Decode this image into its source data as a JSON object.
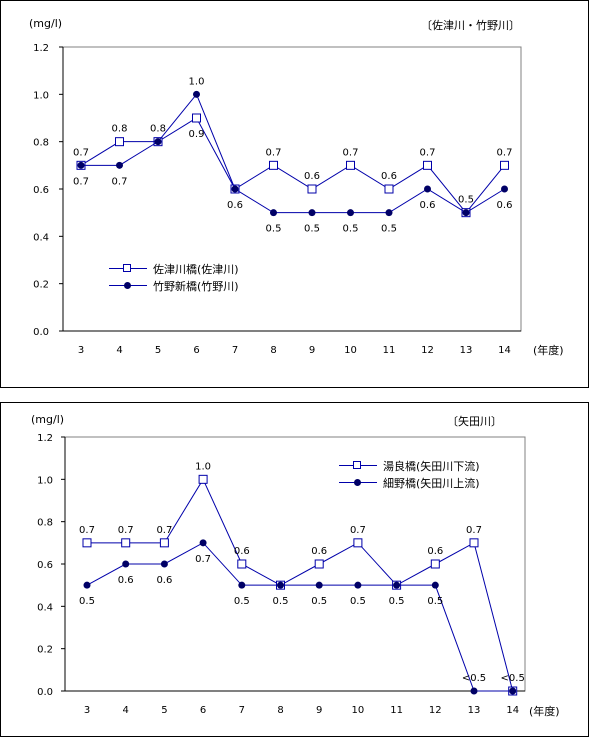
{
  "chart_data": [
    {
      "type": "line",
      "unit_label": "(mg/l)",
      "region_label": "〔佐津川・竹野川〕",
      "xlabel": "(年度)",
      "categories": [
        "3",
        "4",
        "5",
        "6",
        "7",
        "8",
        "9",
        "10",
        "11",
        "12",
        "13",
        "14"
      ],
      "ylim": [
        0,
        1.2
      ],
      "yticks": [
        "0.0",
        "0.2",
        "0.4",
        "0.6",
        "0.8",
        "1.0",
        "1.2"
      ],
      "series": [
        {
          "name": "佐津川橋(佐津川)",
          "marker": "open-square",
          "values": [
            0.7,
            0.8,
            0.8,
            0.9,
            0.6,
            0.7,
            0.6,
            0.7,
            0.6,
            0.7,
            0.5,
            0.7
          ],
          "labels": [
            "0.7",
            "0.8",
            "0.8",
            "0.9",
            "",
            "0.7",
            "0.6",
            "0.7",
            "0.6",
            "0.7",
            "0.5",
            "0.7"
          ]
        },
        {
          "name": "竹野新橋(竹野川)",
          "marker": "filled-circle",
          "values": [
            0.7,
            0.7,
            0.8,
            1.0,
            0.6,
            0.5,
            0.5,
            0.5,
            0.5,
            0.6,
            0.5,
            0.6
          ],
          "labels": [
            "0.7",
            "0.7",
            "",
            "1.0",
            "0.6",
            "0.5",
            "0.5",
            "0.5",
            "0.5",
            "0.6",
            "",
            "0.6"
          ]
        }
      ]
    },
    {
      "type": "line",
      "unit_label": "(mg/l)",
      "region_label": "〔矢田川〕",
      "xlabel": "(年度)",
      "categories": [
        "3",
        "4",
        "5",
        "6",
        "7",
        "8",
        "9",
        "10",
        "11",
        "12",
        "13",
        "14"
      ],
      "ylim": [
        0,
        1.2
      ],
      "yticks": [
        "0.0",
        "0.2",
        "0.4",
        "0.6",
        "0.8",
        "1.0",
        "1.2"
      ],
      "series": [
        {
          "name": "湯良橋(矢田川下流)",
          "marker": "open-square",
          "values": [
            0.7,
            0.7,
            0.7,
            1.0,
            0.6,
            0.5,
            0.6,
            0.7,
            0.5,
            0.6,
            0.7,
            0.0
          ],
          "labels": [
            "0.7",
            "0.7",
            "0.7",
            "1.0",
            "0.6",
            "",
            "0.6",
            "0.7",
            "",
            "0.6",
            "0.7",
            "<0.5"
          ]
        },
        {
          "name": "細野橋(矢田川上流)",
          "marker": "filled-circle",
          "values": [
            0.5,
            0.6,
            0.6,
            0.7,
            0.5,
            0.5,
            0.5,
            0.5,
            0.5,
            0.5,
            0.0,
            0.0
          ],
          "labels": [
            "0.5",
            "0.6",
            "0.6",
            "0.7",
            "0.5",
            "0.5",
            "0.5",
            "0.5",
            "0.5",
            "0.5",
            "<0.5",
            ""
          ]
        }
      ]
    }
  ],
  "colors": {
    "series_line": "#0000aa",
    "circle_marker": "#000066",
    "axis": "#000000",
    "plot_border": "#808080"
  }
}
